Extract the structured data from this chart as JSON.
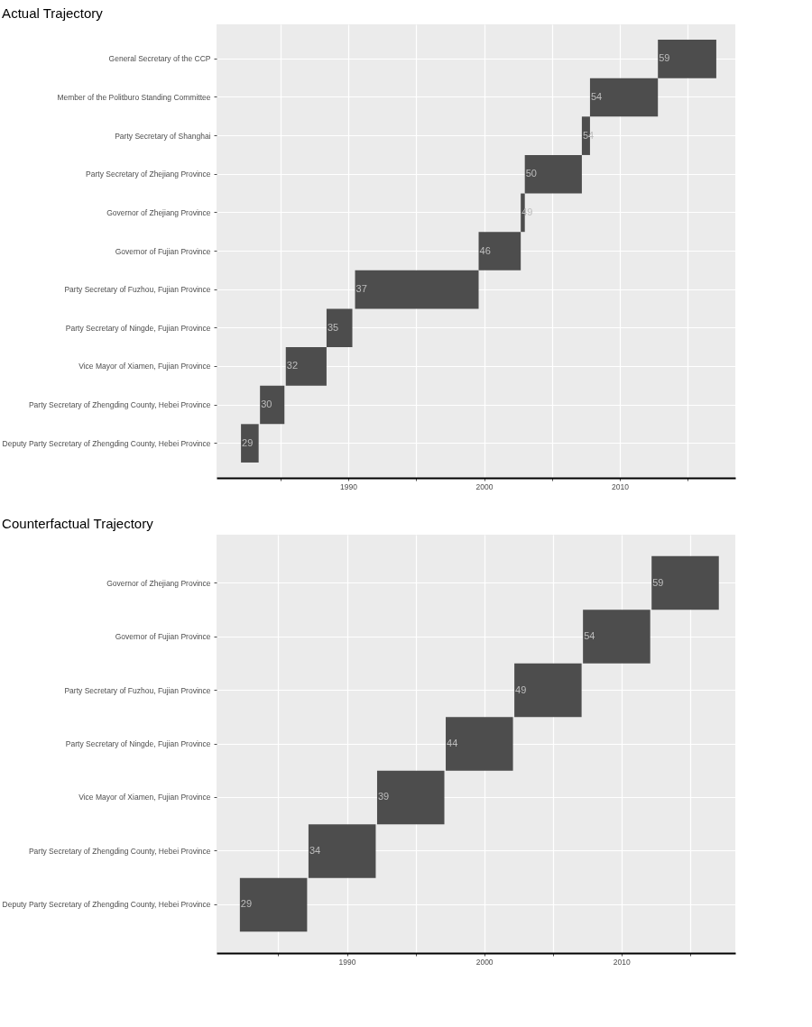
{
  "chart_data": [
    {
      "type": "bar",
      "orientation": "horizontal",
      "title": "Actual Trajectory",
      "categories": [
        "General Secretary of the CCP",
        "Member of the Politburo Standing Committee",
        "Party Secretary of Shanghai",
        "Party Secretary of Zhejiang Province",
        "Governor of Zhejiang Province",
        "Governor of Fujian Province",
        "Party Secretary of Fuzhou, Fujian Province",
        "Party Secretary of Ningde, Fujian Province",
        "Vice Mayor of Xiamen, Fujian Province",
        "Party Secretary of Zhengding County, Hebei Province",
        "Deputy Party Secretary of Zhengding County, Hebei Province"
      ],
      "base": [
        2012.8,
        2007.8,
        2007.2,
        2003.0,
        2002.7,
        1999.6,
        1990.5,
        1988.4,
        1985.4,
        1983.5,
        1982.1
      ],
      "values": [
        4.3,
        5.0,
        0.6,
        4.2,
        0.3,
        3.1,
        9.1,
        1.9,
        3.0,
        1.8,
        1.3
      ],
      "annotations": [
        {
          "text": "59",
          "x": 2012.8,
          "y": "General Secretary of the CCP"
        },
        {
          "text": "54",
          "x": 2007.8,
          "y": "Member of the Politburo Standing Committee"
        },
        {
          "text": "54",
          "x": 2007.2,
          "y": "Party Secretary of Shanghai"
        },
        {
          "text": "50",
          "x": 2003.0,
          "y": "Party Secretary of Zhejiang Province"
        },
        {
          "text": "49",
          "x": 2002.7,
          "y": "Governor of Zhejiang Province"
        },
        {
          "text": "46",
          "x": 1999.6,
          "y": "Governor of Fujian Province"
        },
        {
          "text": "37",
          "x": 1990.5,
          "y": "Party Secretary of Fuzhou, Fujian Province"
        },
        {
          "text": "35",
          "x": 1988.4,
          "y": "Party Secretary of Ningde, Fujian Province"
        },
        {
          "text": "32",
          "x": 1985.4,
          "y": "Vice Mayor of Xiamen, Fujian Province"
        },
        {
          "text": "30",
          "x": 1983.5,
          "y": "Party Secretary of Zhengding County, Hebei Province"
        },
        {
          "text": "29",
          "x": 1982.1,
          "y": "Deputy Party Secretary of Zhengding County, Hebei Province"
        }
      ],
      "color": "#4d4d4d",
      "xlim": [
        1980.3,
        2018.5
      ],
      "xticks": [
        {
          "value": 1985,
          "label": null
        },
        1990,
        {
          "value": 1995,
          "label": null
        },
        2000,
        {
          "value": 2005,
          "label": null
        },
        2010,
        {
          "value": 2015,
          "label": null
        }
      ],
      "grid": true
    },
    {
      "type": "bar",
      "orientation": "horizontal",
      "title": "Counterfactual Trajectory",
      "categories": [
        "Governor of Zhejiang Province",
        "Governor of Fujian Province",
        "Party Secretary of Fuzhou, Fujian Province",
        "Party Secretary of Ningde, Fujian Province",
        "Vice Mayor of Xiamen, Fujian Province",
        "Party Secretary of Zhengding County, Hebei Province",
        "Deputy Party Secretary of Zhengding County, Hebei Province"
      ],
      "base": [
        2012.2,
        2007.2,
        2002.2,
        1997.2,
        1992.2,
        1987.2,
        1982.2
      ],
      "values": [
        4.9,
        4.9,
        4.9,
        4.9,
        4.9,
        4.9,
        4.9
      ],
      "annotations": [
        {
          "text": "59",
          "x": 2012.2,
          "y": "Governor of Zhejiang Province"
        },
        {
          "text": "54",
          "x": 2007.2,
          "y": "Governor of Fujian Province"
        },
        {
          "text": "49",
          "x": 2002.2,
          "y": "Party Secretary of Fuzhou, Fujian Province"
        },
        {
          "text": "44",
          "x": 1997.2,
          "y": "Party Secretary of Ningde, Fujian Province"
        },
        {
          "text": "39",
          "x": 1992.2,
          "y": "Vice Mayor of Xiamen, Fujian Province"
        },
        {
          "text": "34",
          "x": 1987.2,
          "y": "Party Secretary of Zhengding County, Hebei Province"
        },
        {
          "text": "29",
          "x": 1982.2,
          "y": "Deputy Party Secretary of Zhengding County, Hebei Province"
        }
      ],
      "color": "#4d4d4d",
      "xlim": [
        1980.5,
        2018.3
      ],
      "xticks": [
        {
          "value": 1985,
          "label": null
        },
        1990,
        {
          "value": 1995,
          "label": null
        },
        2000,
        {
          "value": 2005,
          "label": null
        },
        2010,
        {
          "value": 2015,
          "label": null
        }
      ],
      "grid": true
    }
  ]
}
